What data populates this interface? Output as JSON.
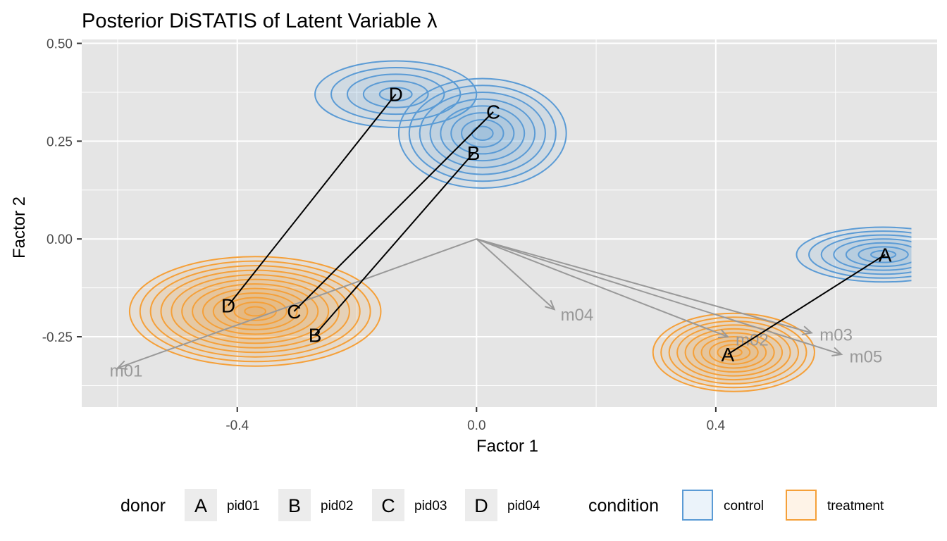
{
  "chart_data": {
    "type": "scatter",
    "title": "Posterior DiSTATIS of Latent Variable λ",
    "xlabel": "Factor 1",
    "ylabel": "Factor 2",
    "xlim": [
      -0.66,
      0.77
    ],
    "ylim": [
      -0.43,
      0.51
    ],
    "x_ticks": [
      {
        "value": -0.4,
        "label": "-0.4"
      },
      {
        "value": 0.0,
        "label": "0.0"
      },
      {
        "value": 0.4,
        "label": "0.4"
      }
    ],
    "y_ticks": [
      {
        "value": 0.5,
        "label": "0.50"
      },
      {
        "value": 0.25,
        "label": "0.25"
      },
      {
        "value": 0.0,
        "label": "0.00"
      },
      {
        "value": -0.25,
        "label": "-0.25"
      }
    ],
    "grid": true,
    "colors": {
      "control": "#5b9bd5",
      "treatment": "#f5a039",
      "arrow": "#999999",
      "segment": "#000000",
      "panel": "#e5e5e5",
      "grid": "#ffffff"
    },
    "variables": [
      {
        "name": "m01",
        "x": -0.6,
        "y": -0.33
      },
      {
        "name": "m02",
        "x": 0.42,
        "y": -0.25
      },
      {
        "name": "m03",
        "x": 0.56,
        "y": -0.24
      },
      {
        "name": "m04",
        "x": 0.13,
        "y": -0.18
      },
      {
        "name": "m05",
        "x": 0.61,
        "y": -0.295
      }
    ],
    "donors": [
      {
        "key": "A",
        "name": "pid01",
        "control": [
          0.683,
          -0.04
        ],
        "treatment": [
          0.42,
          -0.295
        ]
      },
      {
        "key": "B",
        "name": "pid02",
        "control": [
          -0.005,
          0.22
        ],
        "treatment": [
          -0.27,
          -0.245
        ]
      },
      {
        "key": "C",
        "name": "pid03",
        "control": [
          0.028,
          0.325
        ],
        "treatment": [
          -0.305,
          -0.185
        ]
      },
      {
        "key": "D",
        "name": "pid04",
        "control": [
          -0.135,
          0.37
        ],
        "treatment": [
          -0.415,
          -0.17
        ]
      }
    ],
    "densities": [
      {
        "condition": "control",
        "cx": -0.135,
        "cy": 0.37,
        "rx": 0.135,
        "ry": 0.085,
        "levels": 5
      },
      {
        "condition": "control",
        "cx": 0.01,
        "cy": 0.27,
        "rx": 0.14,
        "ry": 0.14,
        "levels": 8
      },
      {
        "condition": "control",
        "cx": 0.68,
        "cy": -0.04,
        "rx": 0.145,
        "ry": 0.07,
        "levels": 7,
        "clip_right": 0.727
      },
      {
        "condition": "treatment",
        "cx": -0.37,
        "cy": -0.185,
        "rx": 0.21,
        "ry": 0.14,
        "levels": 12
      },
      {
        "condition": "treatment",
        "cx": 0.43,
        "cy": -0.29,
        "rx": 0.135,
        "ry": 0.1,
        "levels": 10
      }
    ],
    "legend": {
      "position": "bottom",
      "donor_title": "donor",
      "condition_title": "condition",
      "donor_items": [
        {
          "key": "A",
          "label": "pid01"
        },
        {
          "key": "B",
          "label": "pid02"
        },
        {
          "key": "C",
          "label": "pid03"
        },
        {
          "key": "D",
          "label": "pid04"
        }
      ],
      "condition_items": [
        {
          "key": "control",
          "label": "control"
        },
        {
          "key": "treatment",
          "label": "treatment"
        }
      ]
    }
  }
}
